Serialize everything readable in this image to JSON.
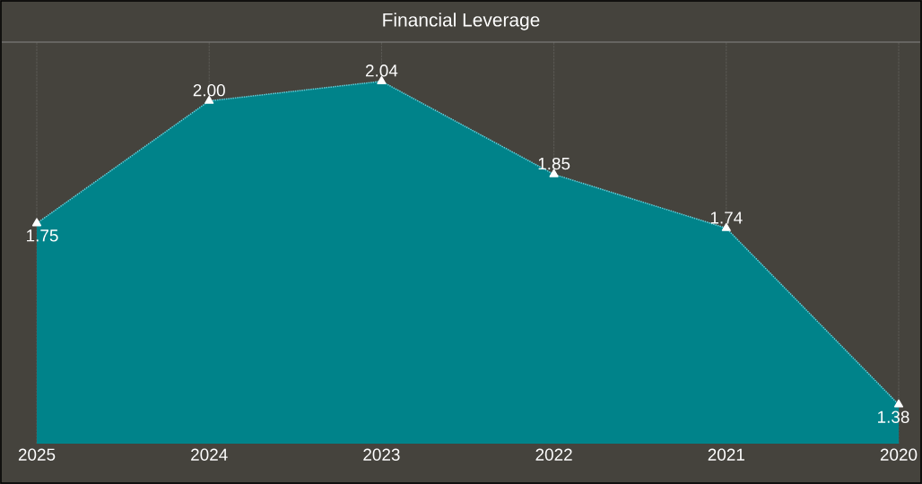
{
  "chart_data": {
    "type": "area",
    "title": "Financial Leverage",
    "categories": [
      "2025",
      "2024",
      "2023",
      "2022",
      "2021",
      "2020"
    ],
    "values": [
      1.75,
      2.0,
      2.04,
      1.85,
      1.74,
      1.38
    ],
    "color": "#00838a",
    "ylim": [
      1.3,
      2.12
    ],
    "grid": "x",
    "marker": "triangle",
    "line_style": "dotted",
    "value_labels": [
      "1.75",
      "2.00",
      "2.04",
      "1.85",
      "1.74",
      "1.38"
    ]
  }
}
